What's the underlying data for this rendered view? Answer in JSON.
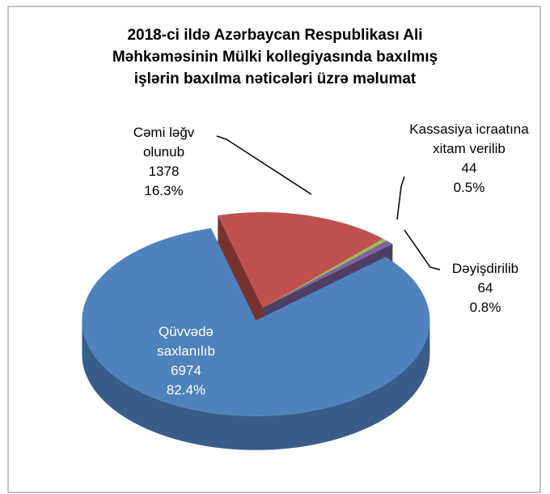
{
  "chart_data": {
    "type": "pie",
    "title": "2018-ci ildə Azərbaycan Respublikası Ali Məhkəməsinin Mülki kollegiyasında baxılmış işlərin baxılma nəticələri üzrə məlumat",
    "categories": [
      "Cəmi ləğv olunub",
      "Kassasiya icraatına xitam verilib",
      "Dəyişdirilib",
      "Qüvvədə saxlanılıb"
    ],
    "values": [
      1378,
      44,
      64,
      6974
    ],
    "percent_labels": [
      "16.3%",
      "0.5%",
      "0.8%",
      "82.4%"
    ],
    "colors": [
      "#c0504d",
      "#9bbb59",
      "#8064a2",
      "#4f81bd"
    ]
  }
}
